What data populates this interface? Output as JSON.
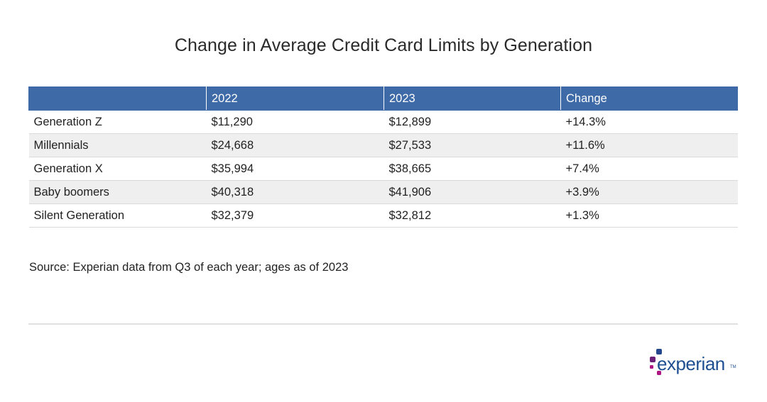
{
  "chart_data": {
    "type": "table",
    "title": "Change in Average Credit Card Limits by Generation",
    "columns": [
      "",
      "2022",
      "2023",
      "Change"
    ],
    "rows": [
      [
        "Generation Z",
        "$11,290",
        "$12,899",
        "+14.3%"
      ],
      [
        "Millennials",
        "$24,668",
        "$27,533",
        "+11.6%"
      ],
      [
        "Generation X",
        "$35,994",
        "$38,665",
        "+7.4%"
      ],
      [
        "Baby boomers",
        "$40,318",
        "$41,906",
        "+3.9%"
      ],
      [
        "Silent Generation",
        "$32,379",
        "$32,812",
        "+1.3%"
      ]
    ],
    "source": "Source: Experian data from Q3 of each year; ages as of 2023"
  },
  "brand": {
    "logo_text": "experian",
    "logo_tm": "TM",
    "colors": {
      "header": "#3e6aa8",
      "row_alt": "#efefef",
      "logo_blue": "#1d4f91",
      "logo_purple": "#6d2077",
      "logo_magenta": "#af1685",
      "logo_navy": "#26478d"
    }
  }
}
